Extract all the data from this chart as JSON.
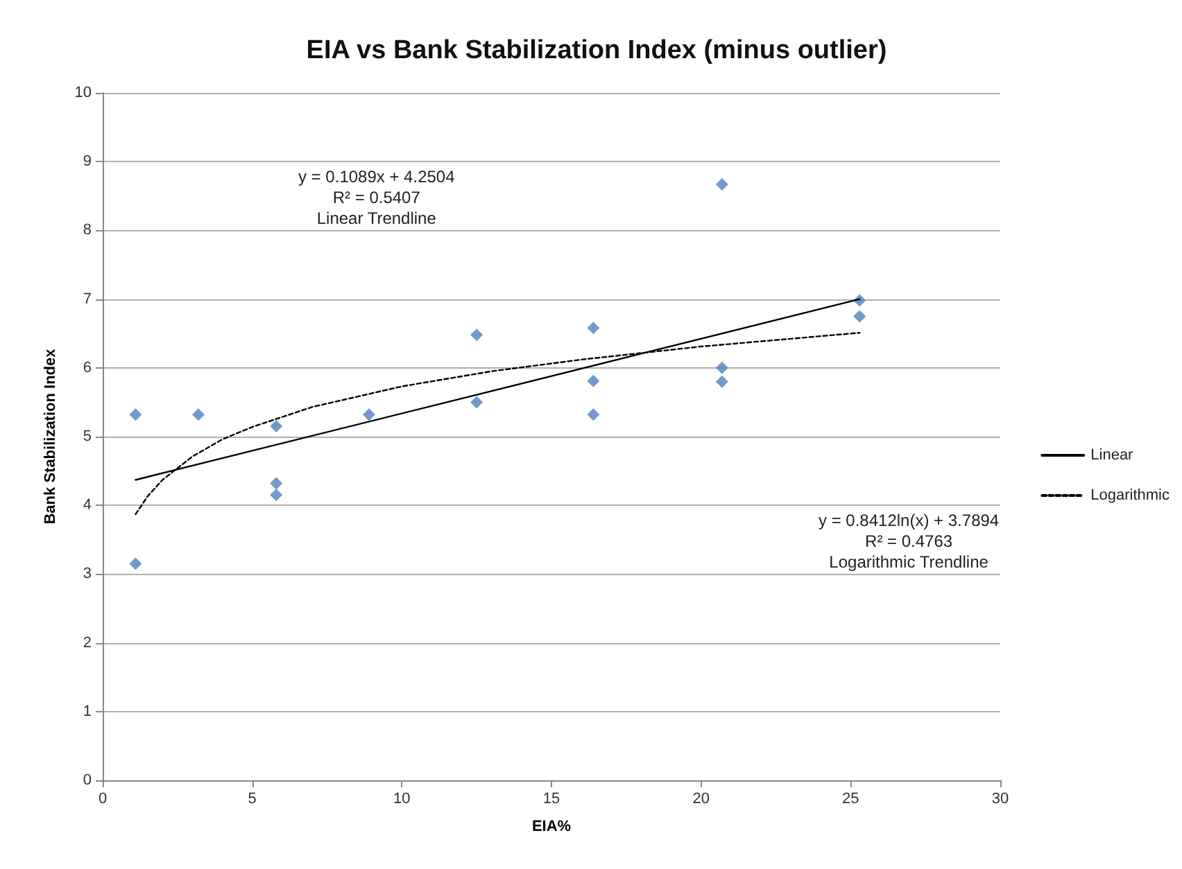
{
  "chart_data": {
    "type": "scatter",
    "title": "EIA vs Bank Stabilization Index (minus outlier)",
    "xlabel": "EIA%",
    "ylabel": "Bank Stabilization Index",
    "annotations": [
      "y = 0.1089x + 4.2504\nR² = 0.5407\nLinear Trendline",
      "y = 0.8412ln(x) + 3.7894\nR² = 0.4763\nLogarithmic Trendline"
    ],
    "xlim": [
      0,
      30
    ],
    "xticks": [
      0,
      5,
      10,
      15,
      20,
      25,
      30
    ],
    "ylim": [
      0,
      10
    ],
    "yticks": [
      0,
      1,
      2,
      3,
      4,
      5,
      6,
      7,
      8,
      9,
      10
    ],
    "grid": "y",
    "legend": "right",
    "marker": "diamond",
    "series": [
      {
        "color": "#4f81bd",
        "x": [
          1.1,
          1.1,
          3.2,
          5.8,
          5.8,
          5.8,
          8.9,
          12.5,
          12.5,
          16.4,
          16.4,
          16.4,
          20.7,
          20.7,
          20.7,
          25.3,
          25.3
        ],
        "values": [
          5.32,
          3.15,
          5.32,
          5.15,
          4.32,
          4.15,
          5.32,
          6.48,
          5.5,
          6.58,
          5.81,
          5.32,
          8.67,
          6.0,
          5.8,
          6.98,
          6.75
        ]
      },
      {
        "type": "line",
        "name": "Linear",
        "color": "#000000",
        "line_style": "solid",
        "marker": "none",
        "x": [
          1.1,
          25.3
        ],
        "values": [
          4.37,
          7.0
        ]
      },
      {
        "type": "line",
        "name": "Logarithmic",
        "color": "#000000",
        "line_style": "dashed",
        "marker": "none",
        "x": [
          1.1,
          1.5,
          2,
          3,
          4,
          5,
          7,
          10,
          13,
          16,
          20,
          25.3
        ],
        "values": [
          3.87,
          4.13,
          4.37,
          4.71,
          4.96,
          5.14,
          5.43,
          5.73,
          5.95,
          6.12,
          6.31,
          6.51
        ]
      }
    ]
  }
}
